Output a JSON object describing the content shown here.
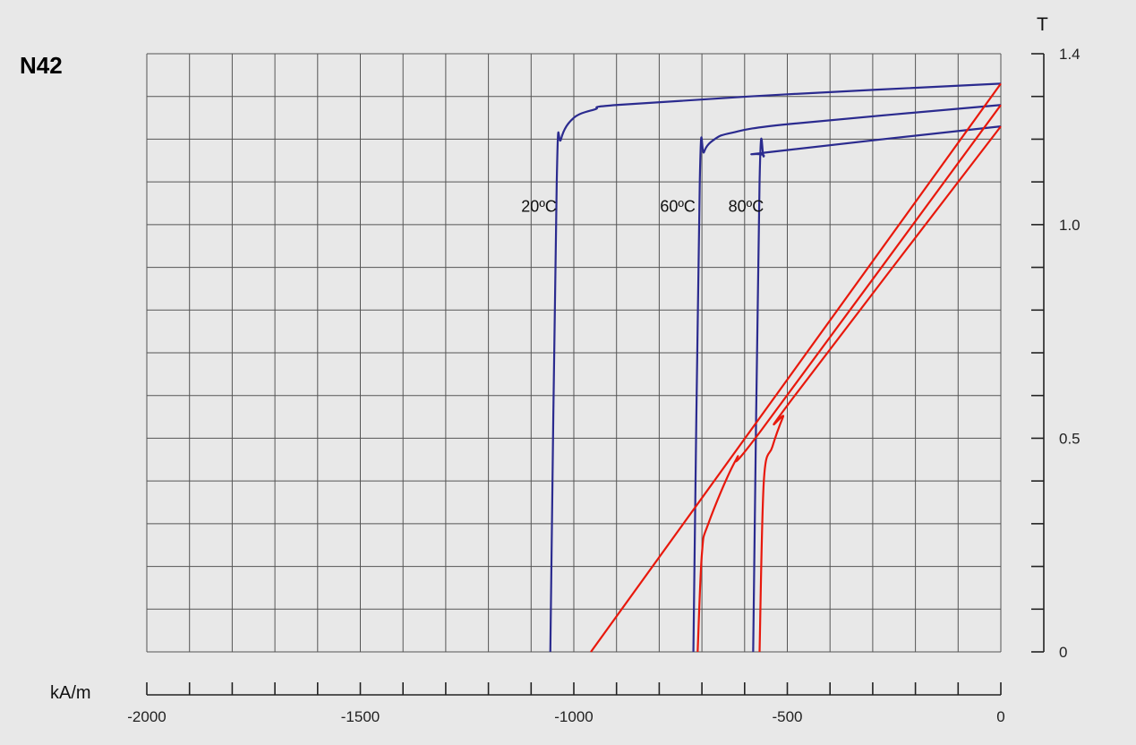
{
  "title": "N42",
  "chart_data": {
    "type": "line",
    "title": "N42",
    "xlabel": "kA/m",
    "ylabel": "T",
    "xlim": [
      -2000,
      0
    ],
    "ylim": [
      0,
      1.4
    ],
    "x_ticks": [
      "-2000",
      "-1500",
      "-1000",
      "-500",
      "0"
    ],
    "y_ticks": [
      "0",
      "0.5",
      "1.0",
      "1.4"
    ],
    "grid": true,
    "colors": {
      "intrinsic": "#2b2b8f",
      "normal": "#e8180c",
      "background": "#e8e8e8"
    },
    "annotations": [
      {
        "text": "20ºC",
        "x": -1040,
        "y": 1.03
      },
      {
        "text": "60ºC",
        "x": -715,
        "y": 1.03
      },
      {
        "text": "80ºC",
        "x": -555,
        "y": 1.03
      }
    ],
    "series": [
      {
        "kind": "intrinsic",
        "points": [
          [
            -1055,
            0
          ],
          [
            -1040,
            1.1
          ],
          [
            -1030,
            1.2
          ],
          [
            -1000,
            1.25
          ],
          [
            -950,
            1.27
          ],
          [
            -900,
            1.28
          ],
          [
            -500,
            1.305
          ],
          [
            0,
            1.33
          ]
        ]
      },
      {
        "kind": "intrinsic",
        "points": [
          [
            -720,
            0
          ],
          [
            -705,
            1.1
          ],
          [
            -695,
            1.17
          ],
          [
            -670,
            1.2
          ],
          [
            -630,
            1.215
          ],
          [
            -500,
            1.235
          ],
          [
            0,
            1.28
          ]
        ]
      },
      {
        "kind": "intrinsic",
        "points": [
          [
            -580,
            0
          ],
          [
            -565,
            1.1
          ],
          [
            -555,
            1.16
          ],
          [
            -540,
            1.17
          ],
          [
            0,
            1.23
          ]
        ]
      },
      {
        "kind": "normal",
        "points": [
          [
            -960,
            0
          ],
          [
            0,
            1.33
          ]
        ]
      },
      {
        "kind": "normal",
        "points": [
          [
            -710,
            0
          ],
          [
            -700,
            0.23
          ],
          [
            -685,
            0.3
          ],
          [
            -620,
            0.45
          ],
          [
            -560,
            0.52
          ],
          [
            0,
            1.28
          ]
        ]
      },
      {
        "kind": "normal",
        "points": [
          [
            -565,
            0
          ],
          [
            -555,
            0.4
          ],
          [
            -535,
            0.48
          ],
          [
            -510,
            0.55
          ],
          [
            -490,
            0.59
          ],
          [
            0,
            1.23
          ]
        ]
      }
    ]
  }
}
